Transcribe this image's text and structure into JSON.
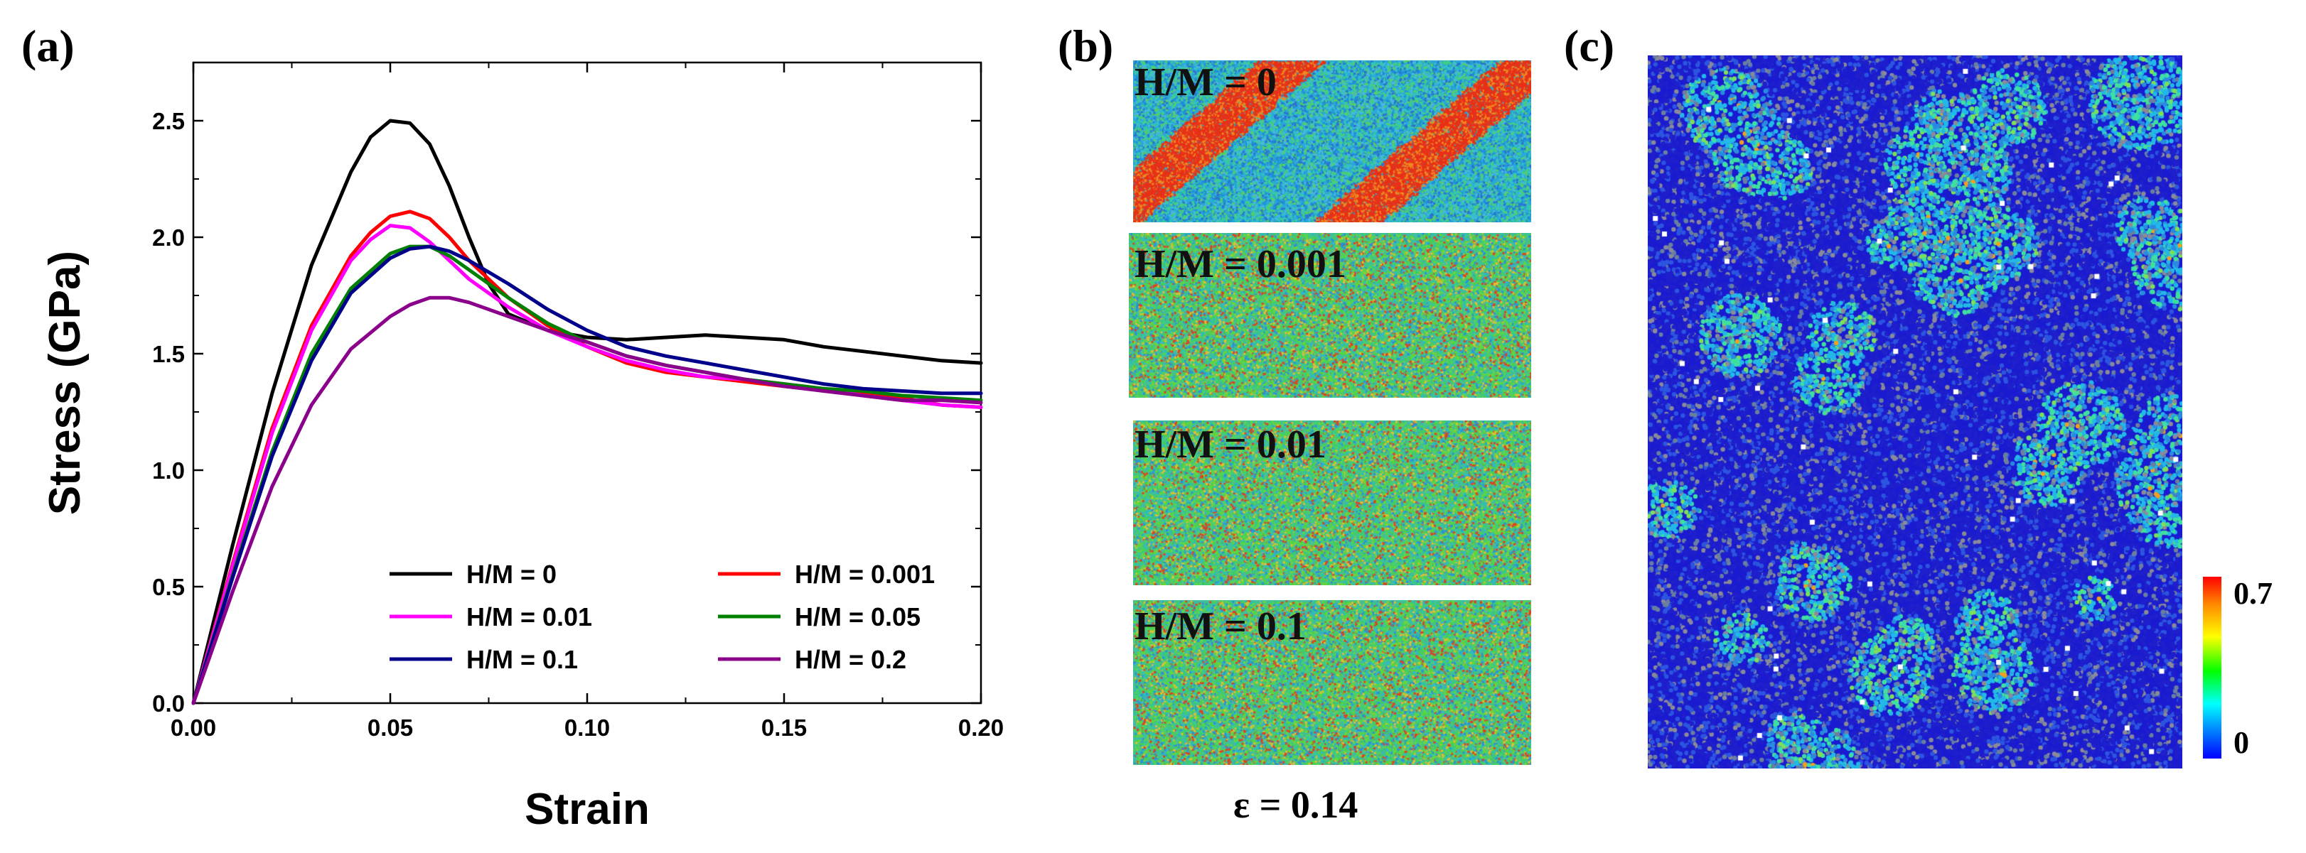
{
  "panels": {
    "a": "(a)",
    "b": "(b)",
    "c": "(c)"
  },
  "chart_data": [
    {
      "type": "line",
      "panel": "(a)",
      "xlabel": "Strain",
      "ylabel": "Stress (GPa)",
      "xlim": [
        0,
        0.2
      ],
      "ylim": [
        0,
        2.75
      ],
      "xticks": [
        "0.00",
        "0.05",
        "0.10",
        "0.15",
        "0.20"
      ],
      "yticks": [
        "0.0",
        "0.5",
        "1.0",
        "1.5",
        "2.0",
        "2.5"
      ],
      "legend_position": "bottom-right",
      "series": [
        {
          "name": "H/M = 0",
          "color": "#000000",
          "x": [
            0,
            0.01,
            0.02,
            0.03,
            0.04,
            0.045,
            0.05,
            0.055,
            0.06,
            0.065,
            0.07,
            0.075,
            0.08,
            0.09,
            0.1,
            0.11,
            0.12,
            0.13,
            0.14,
            0.15,
            0.16,
            0.17,
            0.18,
            0.19,
            0.2
          ],
          "y": [
            0,
            0.68,
            1.33,
            1.88,
            2.28,
            2.43,
            2.5,
            2.49,
            2.4,
            2.22,
            2.0,
            1.8,
            1.67,
            1.6,
            1.57,
            1.56,
            1.57,
            1.58,
            1.57,
            1.56,
            1.53,
            1.51,
            1.49,
            1.47,
            1.46
          ]
        },
        {
          "name": "H/M = 0.001",
          "color": "#ff0000",
          "x": [
            0,
            0.01,
            0.02,
            0.03,
            0.04,
            0.045,
            0.05,
            0.055,
            0.06,
            0.065,
            0.07,
            0.08,
            0.09,
            0.1,
            0.11,
            0.12,
            0.13,
            0.14,
            0.15,
            0.16,
            0.17,
            0.18,
            0.19,
            0.2
          ],
          "y": [
            0,
            0.6,
            1.18,
            1.62,
            1.92,
            2.02,
            2.09,
            2.11,
            2.08,
            2.0,
            1.9,
            1.74,
            1.62,
            1.53,
            1.46,
            1.42,
            1.4,
            1.38,
            1.36,
            1.35,
            1.33,
            1.31,
            1.28,
            1.27
          ]
        },
        {
          "name": "H/M = 0.01",
          "color": "#ff00ff",
          "x": [
            0,
            0.01,
            0.02,
            0.03,
            0.04,
            0.045,
            0.05,
            0.055,
            0.06,
            0.065,
            0.07,
            0.08,
            0.09,
            0.1,
            0.11,
            0.12,
            0.13,
            0.14,
            0.15,
            0.16,
            0.17,
            0.18,
            0.19,
            0.2
          ],
          "y": [
            0,
            0.59,
            1.16,
            1.6,
            1.9,
            1.99,
            2.05,
            2.04,
            1.98,
            1.9,
            1.82,
            1.7,
            1.6,
            1.53,
            1.47,
            1.43,
            1.4,
            1.39,
            1.37,
            1.35,
            1.32,
            1.3,
            1.28,
            1.27
          ]
        },
        {
          "name": "H/M = 0.05",
          "color": "#008000",
          "x": [
            0,
            0.01,
            0.02,
            0.03,
            0.04,
            0.05,
            0.055,
            0.06,
            0.065,
            0.07,
            0.08,
            0.09,
            0.1,
            0.11,
            0.12,
            0.13,
            0.14,
            0.15,
            0.16,
            0.17,
            0.18,
            0.19,
            0.2
          ],
          "y": [
            0,
            0.55,
            1.08,
            1.5,
            1.78,
            1.93,
            1.96,
            1.96,
            1.92,
            1.86,
            1.74,
            1.63,
            1.55,
            1.49,
            1.45,
            1.42,
            1.39,
            1.37,
            1.35,
            1.34,
            1.32,
            1.31,
            1.3
          ]
        },
        {
          "name": "H/M = 0.1",
          "color": "#00008b",
          "x": [
            0,
            0.01,
            0.02,
            0.03,
            0.04,
            0.05,
            0.055,
            0.06,
            0.065,
            0.07,
            0.08,
            0.09,
            0.1,
            0.11,
            0.12,
            0.13,
            0.14,
            0.15,
            0.16,
            0.17,
            0.18,
            0.19,
            0.2
          ],
          "y": [
            0,
            0.54,
            1.06,
            1.47,
            1.76,
            1.91,
            1.95,
            1.96,
            1.94,
            1.9,
            1.8,
            1.69,
            1.6,
            1.53,
            1.49,
            1.46,
            1.43,
            1.4,
            1.37,
            1.35,
            1.34,
            1.33,
            1.33
          ]
        },
        {
          "name": "H/M = 0.2",
          "color": "#8b008b",
          "x": [
            0,
            0.01,
            0.02,
            0.03,
            0.04,
            0.05,
            0.055,
            0.06,
            0.065,
            0.07,
            0.08,
            0.09,
            0.1,
            0.11,
            0.12,
            0.13,
            0.14,
            0.15,
            0.16,
            0.17,
            0.18,
            0.19,
            0.2
          ],
          "y": [
            0,
            0.48,
            0.93,
            1.28,
            1.52,
            1.66,
            1.71,
            1.74,
            1.74,
            1.72,
            1.66,
            1.6,
            1.55,
            1.49,
            1.45,
            1.42,
            1.39,
            1.36,
            1.34,
            1.32,
            1.3,
            1.3,
            1.29
          ]
        }
      ]
    }
  ],
  "panel_b": {
    "titles": [
      "H/M = 0",
      "H/M = 0.001",
      "H/M = 0.01",
      "H/M = 0.1"
    ],
    "strain_label": "ε = 0.14"
  },
  "panel_c": {
    "colorbar_max": "0.7",
    "colorbar_min": "0"
  }
}
